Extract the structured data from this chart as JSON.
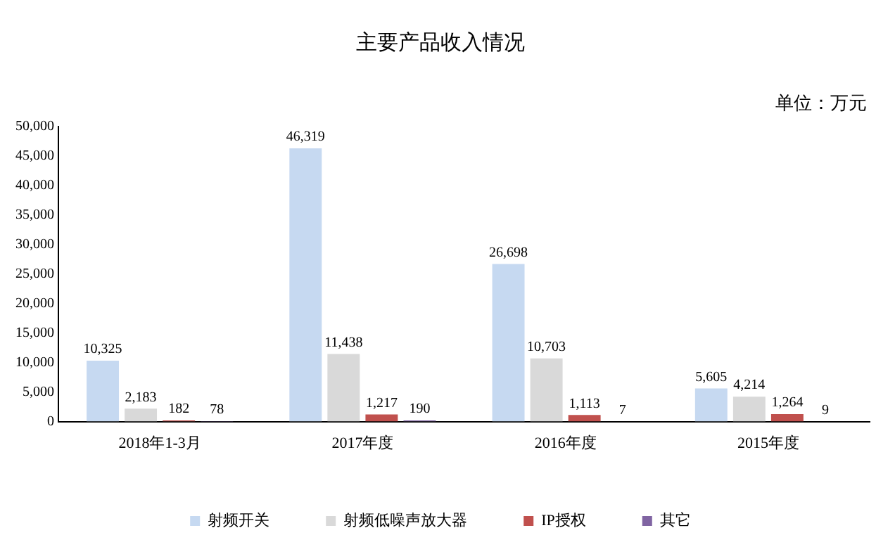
{
  "chart_data": {
    "type": "bar",
    "title": "主要产品收入情况",
    "annotations": [
      "单位：万元"
    ],
    "categories": [
      "2018年1-3月",
      "2017年度",
      "2016年度",
      "2015年度"
    ],
    "series": [
      {
        "name": "射频开关",
        "color": "#c6d9f1",
        "values": [
          10325,
          46319,
          26698,
          5605
        ],
        "value_labels": [
          "10,325",
          "46,319",
          "26,698",
          "5,605"
        ]
      },
      {
        "name": "射频低噪声放大器",
        "color": "#d9d9d9",
        "values": [
          2183,
          11438,
          10703,
          4214
        ],
        "value_labels": [
          "2,183",
          "11,438",
          "10,703",
          "4,214"
        ]
      },
      {
        "name": "IP授权",
        "color": "#c0504d",
        "values": [
          182,
          1217,
          1113,
          1264
        ],
        "value_labels": [
          "182",
          "1,217",
          "1,113",
          "1,264"
        ]
      },
      {
        "name": "其它",
        "color": "#8064a2",
        "values": [
          78,
          190,
          7,
          9
        ],
        "value_labels": [
          "78",
          "190",
          "7",
          "9"
        ]
      }
    ],
    "ylim": [
      0,
      50000
    ],
    "yticks": [
      0,
      {
        "value": 5000,
        "label": "5,000"
      },
      {
        "value": 10000,
        "label": "10,000"
      },
      {
        "value": 15000,
        "label": "15,000"
      },
      {
        "value": 20000,
        "label": "20,000"
      },
      {
        "value": 25000,
        "label": "25,000"
      },
      {
        "value": 30000,
        "label": "30,000"
      },
      {
        "value": 35000,
        "label": "35,000"
      },
      {
        "value": 40000,
        "label": "40,000"
      },
      {
        "value": 45000,
        "label": "45,000"
      },
      {
        "value": 50000,
        "label": "50,000"
      }
    ],
    "grid": false,
    "legend": "bottom"
  }
}
